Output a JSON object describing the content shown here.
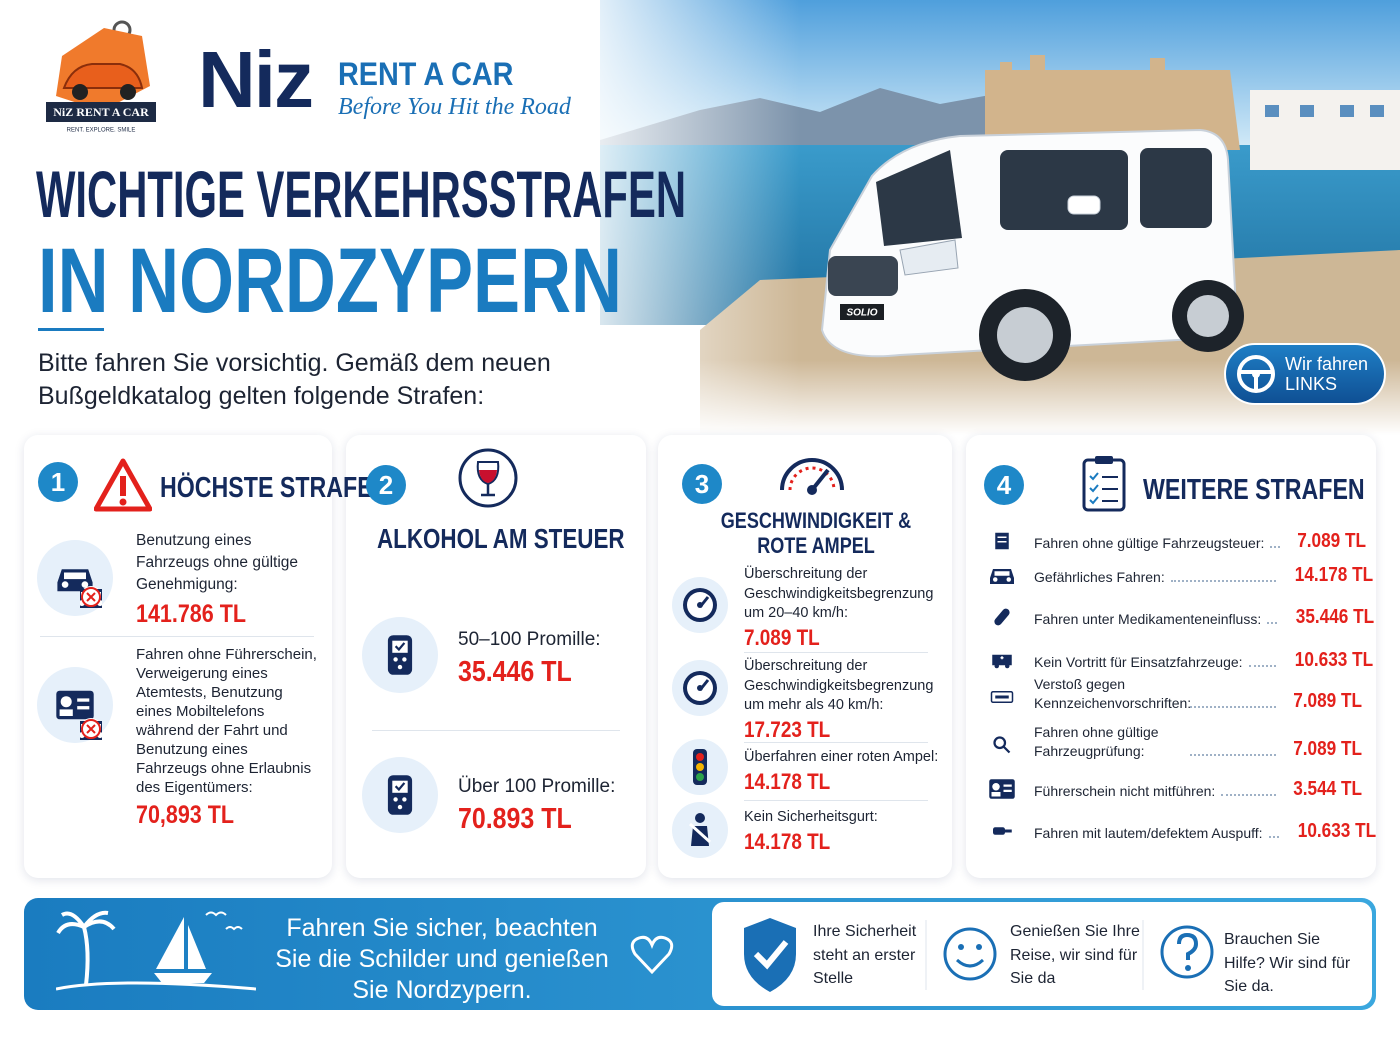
{
  "brand": {
    "logo_text": "NiZ RENT A CAR",
    "logo_sub": "RENT. EXPLORE. SMILE",
    "name": "Niz",
    "tagline": "RENT A CAR",
    "slogan": "Before You Hit the Road"
  },
  "headline": {
    "line1": "WICHTIGE VERKEHRSSTRAFEN",
    "line2": "IN NORDZYPERN"
  },
  "intro": "Bitte fahren Sie vorsichtig. Gemäß dem neuen Bußgeldkatalog gelten folgende Strafen:",
  "car_badge": "SOLIO",
  "badge": {
    "line1": "Wir fahren",
    "line2": "LINKS"
  },
  "cards": [
    {
      "number": "1",
      "title": "HÖCHSTE STRAFE",
      "items": [
        {
          "text": "Benutzung eines Fahrzeugs ohne gültige Genehmigung:",
          "amount": "141.786 TL"
        },
        {
          "text": "Fahren ohne Führerschein, Verweigerung eines Atemtests, Benutzung eines Mobiltelefons während der Fahrt und Benutzung eines Fahrzeugs ohne Erlaubnis des Eigentümers:",
          "amount": "70,893 TL"
        }
      ]
    },
    {
      "number": "2",
      "title": "ALKOHOL AM STEUER",
      "items": [
        {
          "text": "50–100 Promille:",
          "amount": "35.446 TL"
        },
        {
          "text": "Über 100 Promille:",
          "amount": "70.893 TL"
        }
      ]
    },
    {
      "number": "3",
      "title": "GESCHWINDIGKEIT & ROTE AMPEL",
      "items": [
        {
          "text": "Überschreitung der Geschwindigkeitsbegrenzung um 20–40 km/h:",
          "amount": "7.089 TL"
        },
        {
          "text": "Überschreitung der Geschwindigkeitsbegrenzung um mehr als 40 km/h:",
          "amount": "17.723 TL"
        },
        {
          "text": "Überfahren einer roten Ampel:",
          "amount": "14.178 TL"
        },
        {
          "text": "Kein Sicherheitsgurt:",
          "amount": "14.178 TL"
        }
      ]
    },
    {
      "number": "4",
      "title": "WEITERE STRAFEN",
      "items": [
        {
          "text": "Fahren ohne gültige Fahrzeugsteuer:",
          "amount": "7.089 TL"
        },
        {
          "text": "Gefährliches Fahren:",
          "amount": "14.178 TL"
        },
        {
          "text": "Fahren unter Medikamenteneinfluss:",
          "amount": "35.446 TL"
        },
        {
          "text": "Kein Vortritt für Einsatzfahrzeuge:",
          "amount": "10.633 TL"
        },
        {
          "text": "Verstoß gegen Kennzeichenvorschriften:",
          "amount": "7.089 TL"
        },
        {
          "text": "Fahren ohne gültige Fahrzeugprüfung:",
          "amount": "7.089 TL"
        },
        {
          "text": "Führerschein nicht mitführen:",
          "amount": "3.544 TL"
        },
        {
          "text": "Fahren mit lautem/defektem Auspuff:",
          "amount": "10.633 TL"
        }
      ]
    }
  ],
  "footer": {
    "message": "Fahren Sie sicher, beachten Sie die Schilder und genießen Sie Nordzypern.",
    "features": [
      "Ihre Sicherheit steht an erster Stelle",
      "Genießen Sie Ihre Reise, wir sind für Sie da",
      "Brauchen Sie Hilfe? Wir sind für Sie da."
    ]
  }
}
